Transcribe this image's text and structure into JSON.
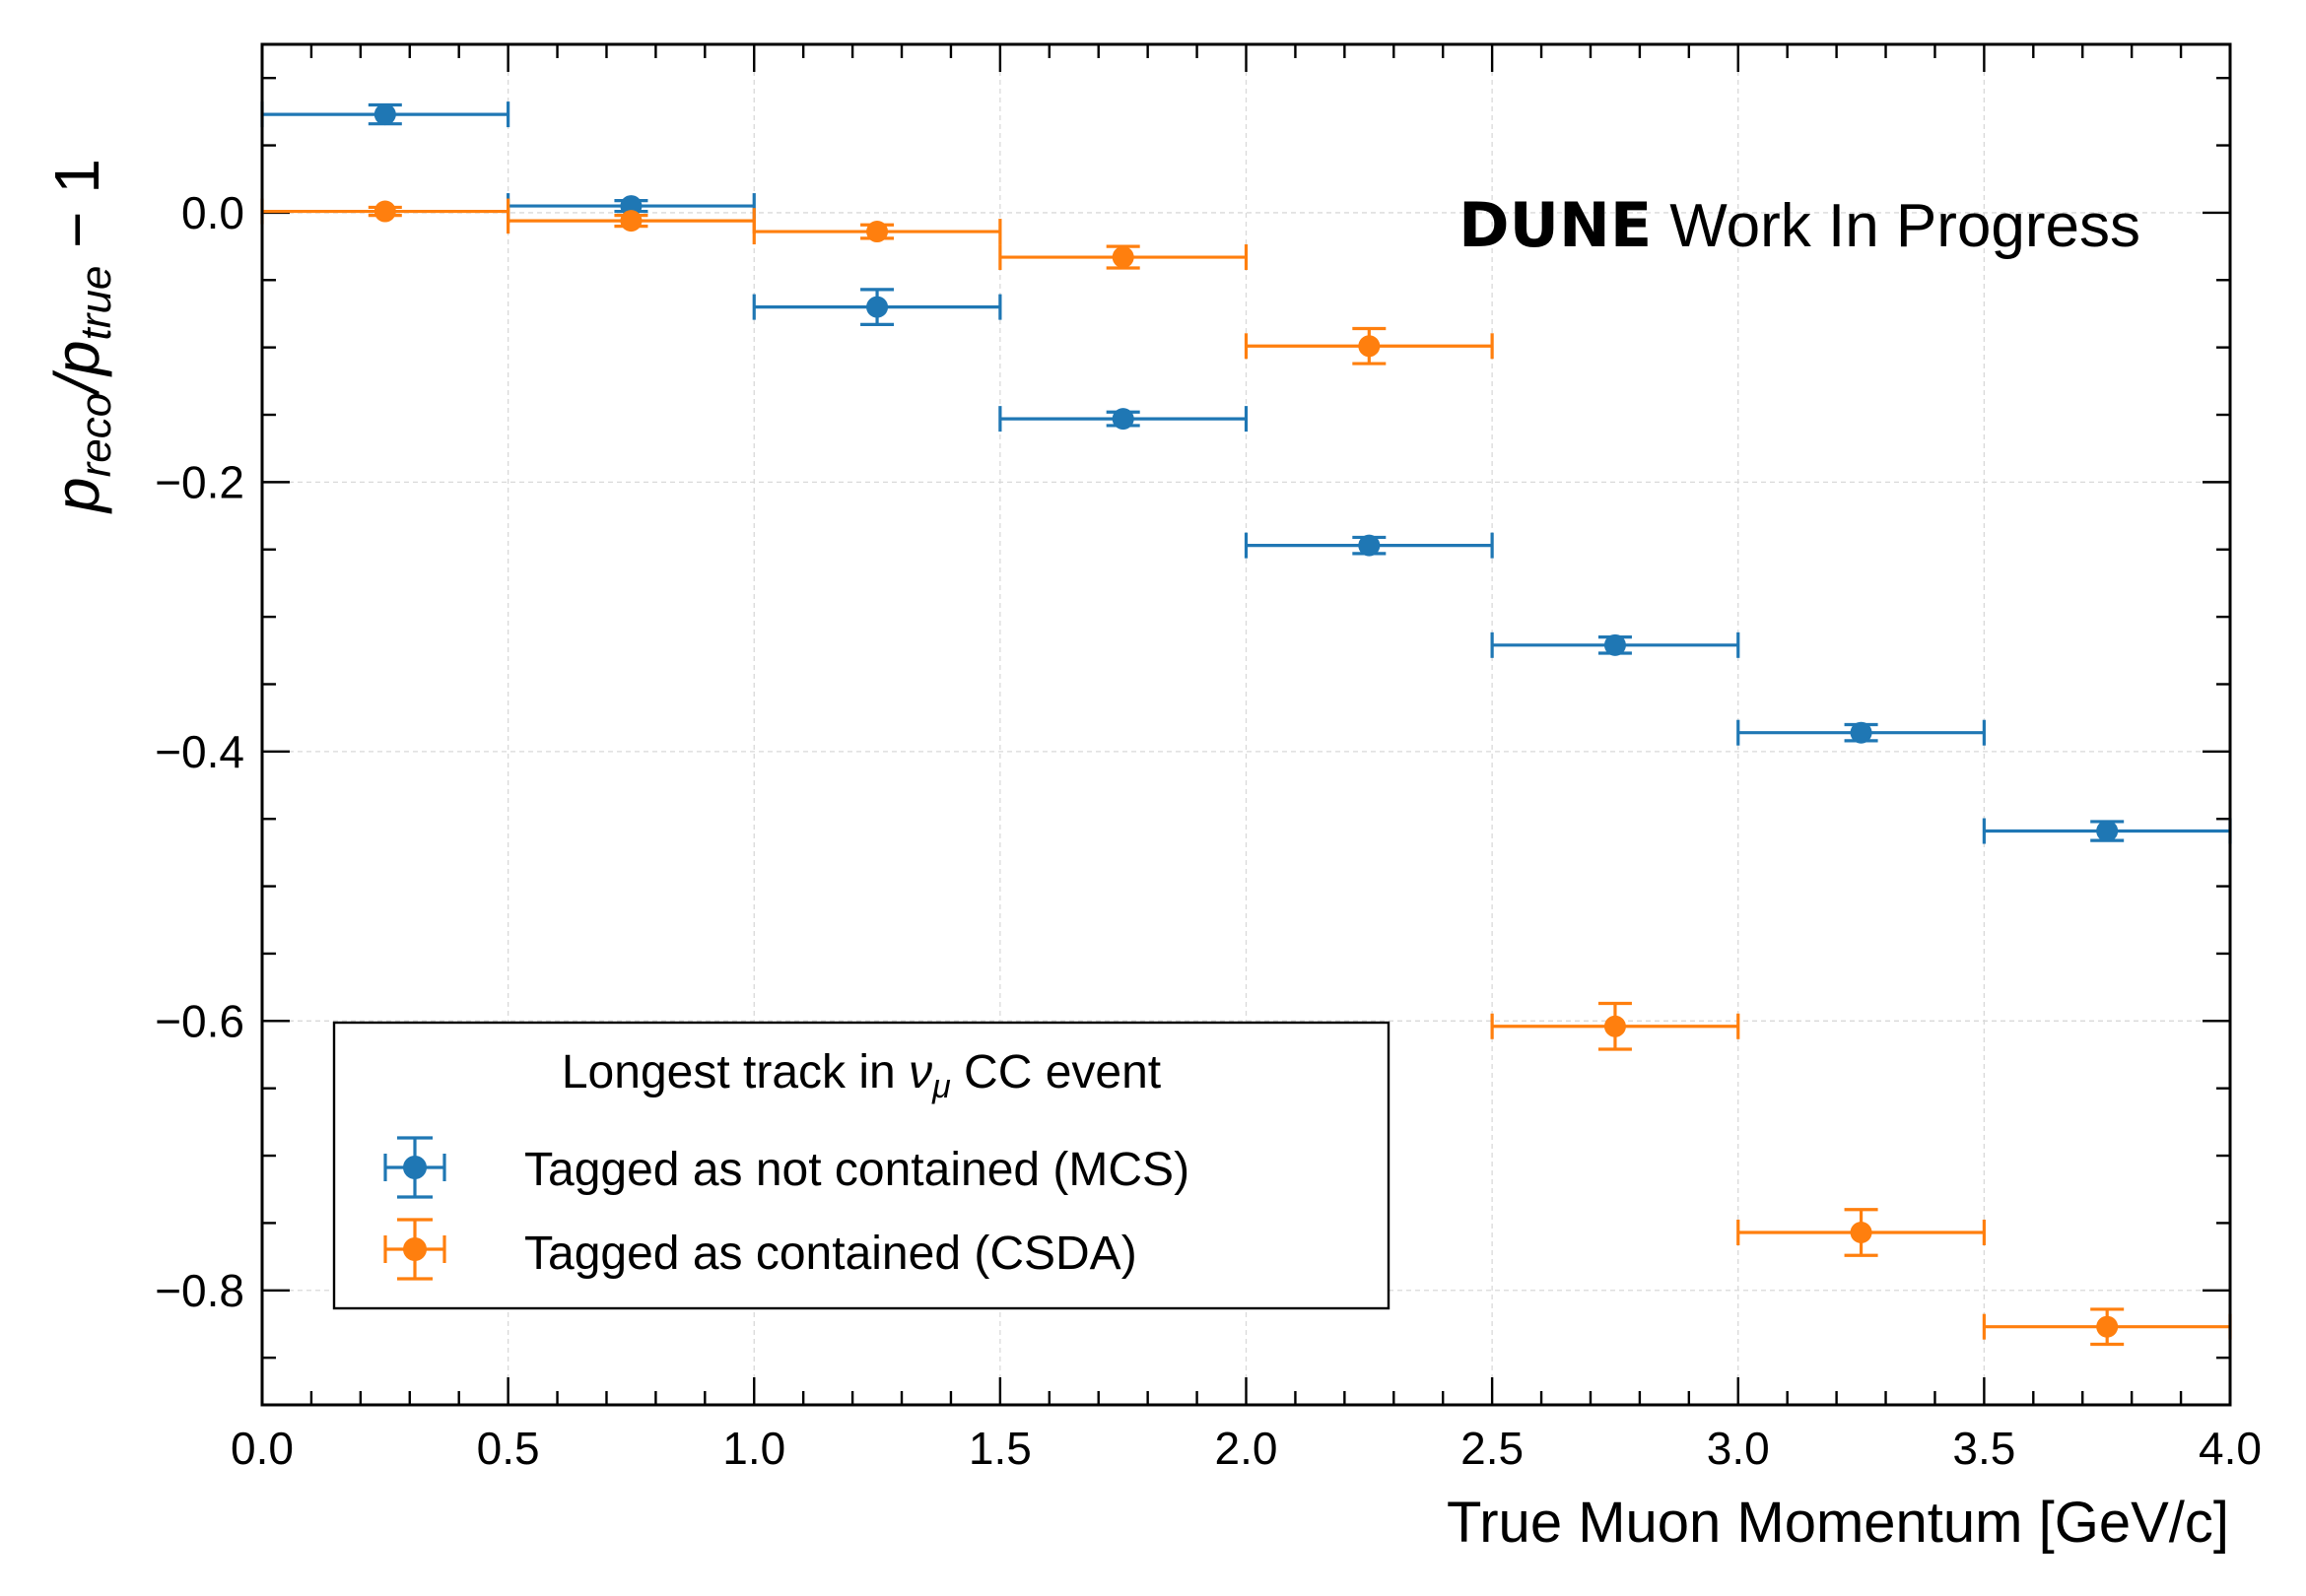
{
  "chart_data": {
    "type": "scatter",
    "style": "error-bar points with horizontal bin-width bars",
    "xlabel": "True Muon Momentum [GeV/c]",
    "ylabel": "p_reco/p_true − 1",
    "ylabel_parts": {
      "p1": "p",
      "sub1": "reco",
      "slash": "/",
      "p2": "p",
      "sub2": "true",
      "tail": " − 1"
    },
    "xlim": [
      0.0,
      4.0
    ],
    "ylim": [
      -0.885,
      0.125
    ],
    "x_ticks": [
      "0.0",
      "0.5",
      "1.0",
      "1.5",
      "2.0",
      "2.5",
      "3.0",
      "3.5",
      "4.0"
    ],
    "y_ticks": [
      "0.0",
      "−0.2",
      "−0.4",
      "−0.6",
      "−0.8"
    ],
    "grid": true,
    "annotation": {
      "bold": "DUNE",
      "normal": "Work In Progress"
    },
    "legend": {
      "placement": "lower-left",
      "title_pre": "Longest track in ",
      "title_nu": "ν",
      "title_mu": "μ",
      "title_post": " CC event",
      "entries": [
        "Tagged as not contained (MCS)",
        "Tagged as contained (CSDA)"
      ]
    },
    "bin_halfwidth": 0.25,
    "series": [
      {
        "name": "Tagged as not contained (MCS)",
        "color": "#1f77b4",
        "x": [
          0.25,
          0.75,
          1.25,
          1.75,
          2.25,
          2.75,
          3.25,
          3.75
        ],
        "y": [
          0.073,
          0.005,
          -0.07,
          -0.153,
          -0.247,
          -0.321,
          -0.386,
          -0.459
        ],
        "yerr": [
          0.007,
          0.004,
          0.013,
          0.005,
          0.006,
          0.006,
          0.006,
          0.007
        ]
      },
      {
        "name": "Tagged as contained (CSDA)",
        "color": "#ff7f0e",
        "x": [
          0.25,
          0.75,
          1.25,
          1.75,
          2.25,
          2.75,
          3.25,
          3.75
        ],
        "y": [
          0.001,
          -0.006,
          -0.014,
          -0.033,
          -0.099,
          -0.604,
          -0.757,
          -0.827
        ],
        "yerr": [
          0.003,
          0.004,
          0.005,
          0.008,
          0.013,
          0.017,
          0.017,
          0.013
        ]
      }
    ]
  }
}
